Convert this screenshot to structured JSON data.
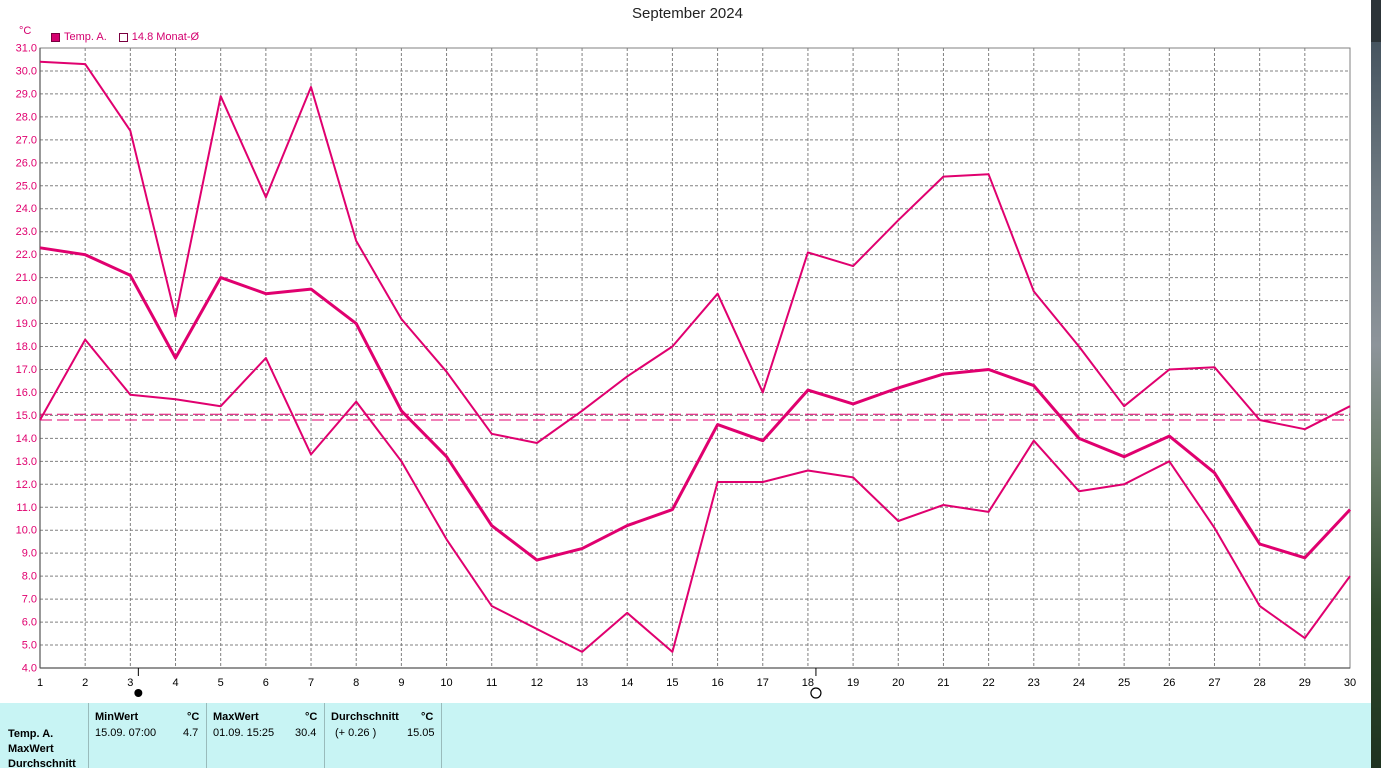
{
  "title": "September 2024",
  "unit": "°C",
  "legend": {
    "series": "Temp. A.",
    "avg_label": "14.8 Monat-Ø"
  },
  "colors": {
    "series": "#e0006f",
    "grid": "#808080",
    "stats_bg": "#c8f4f4"
  },
  "moon_phases": {
    "new_moon_day": 3,
    "full_moon_day": 18
  },
  "chart_data": {
    "type": "line",
    "title": "September 2024",
    "ylabel": "°C",
    "xlim": [
      1,
      30
    ],
    "ylim": [
      4.0,
      31.0
    ],
    "ytick_step": 1.0,
    "grid": true,
    "x": [
      1,
      2,
      3,
      4,
      5,
      6,
      7,
      8,
      9,
      10,
      11,
      12,
      13,
      14,
      15,
      16,
      17,
      18,
      19,
      20,
      21,
      22,
      23,
      24,
      25,
      26,
      27,
      28,
      29,
      30
    ],
    "series": [
      {
        "role": "max",
        "values": [
          30.4,
          30.3,
          27.4,
          19.3,
          28.9,
          24.5,
          29.3,
          22.6,
          19.2,
          16.9,
          14.2,
          13.8,
          15.2,
          16.7,
          18.0,
          20.3,
          16.0,
          22.1,
          21.5,
          23.5,
          25.4,
          25.5,
          20.4,
          18.0,
          15.4,
          17.0,
          17.1,
          14.8,
          14.4,
          15.4
        ]
      },
      {
        "role": "mean",
        "values": [
          22.3,
          22.0,
          21.1,
          17.5,
          21.0,
          20.3,
          20.5,
          19.0,
          15.2,
          13.2,
          10.2,
          8.7,
          9.2,
          10.2,
          10.9,
          14.6,
          13.9,
          16.1,
          15.5,
          16.2,
          16.8,
          17.0,
          16.3,
          14.0,
          13.2,
          14.1,
          12.5,
          9.4,
          8.8,
          10.9
        ]
      },
      {
        "role": "min",
        "values": [
          14.8,
          18.3,
          15.9,
          15.7,
          15.4,
          17.5,
          13.3,
          15.6,
          13.0,
          9.6,
          6.7,
          5.7,
          4.7,
          6.4,
          4.7,
          12.1,
          12.1,
          12.6,
          12.3,
          10.4,
          11.1,
          10.8,
          13.9,
          11.7,
          12.0,
          13.0,
          10.1,
          6.7,
          5.3,
          8.0
        ]
      }
    ],
    "reference_lines": [
      15.05,
      14.8
    ]
  },
  "stats": {
    "row_labels": [
      "Temp. A.",
      "MaxWert",
      "Durchschnitt"
    ],
    "min": {
      "header": "MinWert",
      "unit": "°C",
      "when": "15.09.  07:00",
      "value": "4.7"
    },
    "max": {
      "header": "MaxWert",
      "unit": "°C",
      "when": "01.09.  15:25",
      "value": "30.4"
    },
    "avg": {
      "header": "Durchschnitt",
      "unit": "°C",
      "delta": "(+ 0.26 )",
      "value": "15.05"
    }
  }
}
